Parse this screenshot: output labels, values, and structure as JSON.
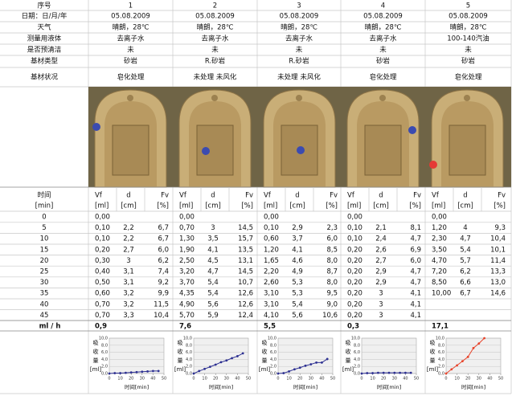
{
  "header": {
    "labels": [
      "序号",
      "日期：日/月/年",
      "天气",
      "测量用液体",
      "是否预清洁",
      "基材类型",
      "基材状况"
    ]
  },
  "columns": [
    {
      "fields": [
        "1",
        "05.08.2009",
        "晴朗，28℃",
        "去离子水",
        "未",
        "砂岩",
        "皂化处理"
      ]
    },
    {
      "fields": [
        "2",
        "05.08.2009",
        "晴朗，28℃",
        "去离子水",
        "未",
        "R.砂岩",
        "未处理 未风化"
      ]
    },
    {
      "fields": [
        "3",
        "05.08.2009",
        "晴朗，28℃",
        "去离子水",
        "未",
        "R.砂岩",
        "未处理 未风化"
      ]
    },
    {
      "fields": [
        "4",
        "05.08.2009",
        "晴朗，28℃",
        "去离子水",
        "未",
        "砂岩",
        "皂化处理"
      ]
    },
    {
      "fields": [
        "5",
        "05.08.2009",
        "晴朗，28℃",
        "100-140汽油",
        "未",
        "砂岩",
        "皂化处理"
      ]
    }
  ],
  "table": {
    "time_label": "时间",
    "time_unit": "[min]",
    "sub_headers": [
      "Vf",
      "d",
      "Fv"
    ],
    "units": [
      "[ml]",
      "[cm]",
      "[%]"
    ],
    "times": [
      "0",
      "5",
      "10",
      "15",
      "20",
      "25",
      "30",
      "35",
      "40",
      "45"
    ],
    "columns": [
      {
        "rows": [
          [
            "0,00",
            null,
            null
          ],
          [
            "0,10",
            "2,2",
            "6,7"
          ],
          [
            "0,10",
            "2,2",
            "6,7"
          ],
          [
            "0,20",
            "2,7",
            "6,0"
          ],
          [
            "0,30",
            "3",
            "6,2"
          ],
          [
            "0,40",
            "3,1",
            "7,4"
          ],
          [
            "0,50",
            "3,1",
            "9,2"
          ],
          [
            "0,60",
            "3,2",
            "9,9"
          ],
          [
            "0,70",
            "3,2",
            "11,5"
          ],
          [
            "0,70",
            "3,3",
            "10,4"
          ]
        ]
      },
      {
        "rows": [
          [
            "0,00",
            null,
            null
          ],
          [
            "0,70",
            "3",
            "14,5"
          ],
          [
            "1,30",
            "3,5",
            "15,7"
          ],
          [
            "1,90",
            "4,1",
            "13,5"
          ],
          [
            "2,50",
            "4,5",
            "13,1"
          ],
          [
            "3,20",
            "4,7",
            "14,5"
          ],
          [
            "3,70",
            "5,4",
            "10,7"
          ],
          [
            "4,35",
            "5,4",
            "12,6"
          ],
          [
            "4,90",
            "5,6",
            "12,6"
          ],
          [
            "5,70",
            "5,9",
            "12,4"
          ]
        ]
      },
      {
        "rows": [
          [
            "0,00",
            null,
            null
          ],
          [
            "0,10",
            "2,9",
            "2,3"
          ],
          [
            "0,60",
            "3,7",
            "6,0"
          ],
          [
            "1,20",
            "4,1",
            "8,5"
          ],
          [
            "1,65",
            "4,6",
            "8,0"
          ],
          [
            "2,20",
            "4,9",
            "8,7"
          ],
          [
            "2,60",
            "5,3",
            "8,0"
          ],
          [
            "3,10",
            "5,3",
            "9,5"
          ],
          [
            "3,10",
            "5,4",
            "9,0"
          ],
          [
            "4,10",
            "5,6",
            "10,6"
          ]
        ]
      },
      {
        "rows": [
          [
            "0,00",
            null,
            null
          ],
          [
            "0,10",
            "2,1",
            "8,1"
          ],
          [
            "0,10",
            "2,4",
            "4,7"
          ],
          [
            "0,20",
            "2,6",
            "6,9"
          ],
          [
            "0,20",
            "2,7",
            "6,0"
          ],
          [
            "0,20",
            "2,9",
            "4,7"
          ],
          [
            "0,20",
            "2,9",
            "4,7"
          ],
          [
            "0,20",
            "3",
            "4,1"
          ],
          [
            "0,20",
            "3",
            "4,1"
          ],
          [
            "0,20",
            "3",
            "4,1"
          ]
        ]
      },
      {
        "rows": [
          [
            "0,00",
            null,
            null
          ],
          [
            "1,20",
            "4",
            "9,3"
          ],
          [
            "2,30",
            "4,7",
            "10,4"
          ],
          [
            "3,50",
            "5,4",
            "10,1"
          ],
          [
            "4,70",
            "5,7",
            "11,4"
          ],
          [
            "7,20",
            "6,2",
            "13,3"
          ],
          [
            "8,50",
            "6,6",
            "13,0"
          ],
          [
            "10,00",
            "6,7",
            "14,6"
          ],
          [
            null,
            null,
            null
          ],
          [
            null,
            null,
            null
          ]
        ]
      }
    ],
    "rate_label": "ml / h",
    "rates": [
      "0,9",
      "7,6",
      "5,5",
      "0,3",
      "17,1"
    ]
  },
  "chart_data": [
    {
      "type": "line",
      "y_label": [
        "吸",
        "收",
        "量",
        "[ml]"
      ],
      "x_label": "时间[min]",
      "x": [
        0,
        5,
        10,
        15,
        20,
        25,
        30,
        35,
        40,
        45
      ],
      "series": [
        {
          "color": "#2e3192",
          "values": [
            0,
            0.1,
            0.1,
            0.2,
            0.3,
            0.4,
            0.5,
            0.6,
            0.7,
            0.7
          ]
        }
      ],
      "xlim": [
        0,
        50
      ],
      "ylim": [
        0,
        10
      ],
      "xticks": [
        0,
        10,
        20,
        30,
        40,
        50
      ],
      "yticks": [
        {
          "value": 0,
          "label": "0,0"
        },
        {
          "value": 2,
          "label": "2,0"
        },
        {
          "value": 4,
          "label": "4,0"
        },
        {
          "value": 6,
          "label": "6,0"
        },
        {
          "value": 8,
          "label": "8,0"
        },
        {
          "value": 10,
          "label": "10,0"
        }
      ],
      "grid": true
    },
    {
      "type": "line",
      "y_label": [
        "吸",
        "收",
        "量",
        "[ml]"
      ],
      "x_label": "时间[min]",
      "x": [
        0,
        5,
        10,
        15,
        20,
        25,
        30,
        35,
        40,
        45
      ],
      "series": [
        {
          "color": "#2e3192",
          "values": [
            0,
            0.7,
            1.3,
            1.9,
            2.5,
            3.2,
            3.7,
            4.35,
            4.9,
            5.7
          ]
        }
      ],
      "xlim": [
        0,
        50
      ],
      "ylim": [
        0,
        10
      ],
      "xticks": [
        0,
        10,
        20,
        30,
        40,
        50
      ],
      "yticks": [
        {
          "value": 0,
          "label": "0,0"
        },
        {
          "value": 2,
          "label": "2,0"
        },
        {
          "value": 4,
          "label": "4,0"
        },
        {
          "value": 6,
          "label": "6,0"
        },
        {
          "value": 8,
          "label": "8,0"
        },
        {
          "value": 10,
          "label": "10,0"
        }
      ],
      "grid": true
    },
    {
      "type": "line",
      "y_label": [
        "吸",
        "收",
        "量",
        "[ml]"
      ],
      "x_label": "时间[min]",
      "x": [
        0,
        5,
        10,
        15,
        20,
        25,
        30,
        35,
        40,
        45
      ],
      "series": [
        {
          "color": "#2e3192",
          "values": [
            0,
            0.1,
            0.6,
            1.2,
            1.65,
            2.2,
            2.6,
            3.1,
            3.1,
            4.1
          ]
        }
      ],
      "xlim": [
        0,
        50
      ],
      "ylim": [
        0,
        10
      ],
      "xticks": [
        0,
        10,
        20,
        30,
        40,
        50
      ],
      "yticks": [
        {
          "value": 0,
          "label": "0,0"
        },
        {
          "value": 2,
          "label": "2,0"
        },
        {
          "value": 4,
          "label": "4,0"
        },
        {
          "value": 6,
          "label": "6,0"
        },
        {
          "value": 8,
          "label": "8,0"
        },
        {
          "value": 10,
          "label": "10,0"
        }
      ],
      "grid": true
    },
    {
      "type": "line",
      "y_label": [
        "吸",
        "收",
        "量",
        "[ml]"
      ],
      "x_label": "时间[min]",
      "x": [
        0,
        5,
        10,
        15,
        20,
        25,
        30,
        35,
        40,
        45
      ],
      "series": [
        {
          "color": "#2e3192",
          "values": [
            0,
            0.1,
            0.1,
            0.2,
            0.2,
            0.2,
            0.2,
            0.2,
            0.2,
            0.2
          ]
        }
      ],
      "xlim": [
        0,
        50
      ],
      "ylim": [
        0,
        10
      ],
      "xticks": [
        0,
        10,
        20,
        30,
        40,
        50
      ],
      "yticks": [
        {
          "value": 0,
          "label": "0,0"
        },
        {
          "value": 2,
          "label": "2,0"
        },
        {
          "value": 4,
          "label": "4,0"
        },
        {
          "value": 6,
          "label": "6,0"
        },
        {
          "value": 8,
          "label": "8,0"
        },
        {
          "value": 10,
          "label": "10,0"
        }
      ],
      "grid": true
    },
    {
      "type": "line",
      "y_label": [
        "吸",
        "收",
        "量",
        "[ml]"
      ],
      "x_label": "时间[min]",
      "x": [
        0,
        5,
        10,
        15,
        20,
        25,
        30,
        35
      ],
      "series": [
        {
          "color": "#e8452c",
          "values": [
            0,
            1.2,
            2.3,
            3.5,
            4.7,
            7.2,
            8.5,
            10
          ]
        }
      ],
      "xlim": [
        0,
        50
      ],
      "ylim": [
        0,
        10
      ],
      "xticks": [
        0,
        10,
        20,
        30,
        40,
        50
      ],
      "yticks": [
        {
          "value": 0,
          "label": "0,0"
        },
        {
          "value": 2,
          "label": "2,0"
        },
        {
          "value": 4,
          "label": "4,0"
        },
        {
          "value": 6,
          "label": "6,0"
        },
        {
          "value": 8,
          "label": "8,0"
        },
        {
          "value": 10,
          "label": "10,0"
        }
      ],
      "grid": true
    }
  ]
}
